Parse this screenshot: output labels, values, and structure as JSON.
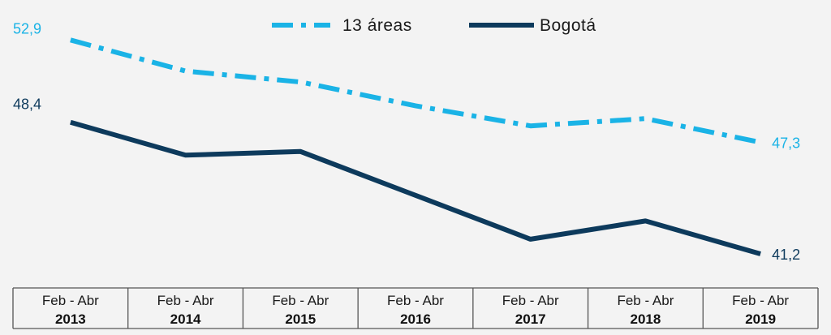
{
  "chart_data": {
    "type": "line",
    "categories": [
      {
        "line1": "Feb - Abr",
        "line2": "2013"
      },
      {
        "line1": "Feb - Abr",
        "line2": "2014"
      },
      {
        "line1": "Feb - Abr",
        "line2": "2015"
      },
      {
        "line1": "Feb - Abr",
        "line2": "2016"
      },
      {
        "line1": "Feb - Abr",
        "line2": "2017"
      },
      {
        "line1": "Feb - Abr",
        "line2": "2018"
      },
      {
        "line1": "Feb - Abr",
        "line2": "2019"
      }
    ],
    "series": [
      {
        "name": "13 áreas",
        "color": "#1ab3e6",
        "style": "dash-dot",
        "values": [
          52.9,
          51.2,
          50.6,
          49.3,
          48.2,
          48.6,
          47.3
        ],
        "labels": {
          "first": "52,9",
          "last": "47,3"
        }
      },
      {
        "name": "Bogotá",
        "color": "#0d3a5c",
        "style": "solid",
        "values": [
          48.4,
          46.6,
          46.8,
          44.4,
          42.0,
          43.0,
          41.2
        ],
        "labels": {
          "first": "48,4",
          "last": "41,2"
        }
      }
    ],
    "ylim": [
      40,
      54.2
    ],
    "grid": false,
    "legend_position": "top-center"
  }
}
